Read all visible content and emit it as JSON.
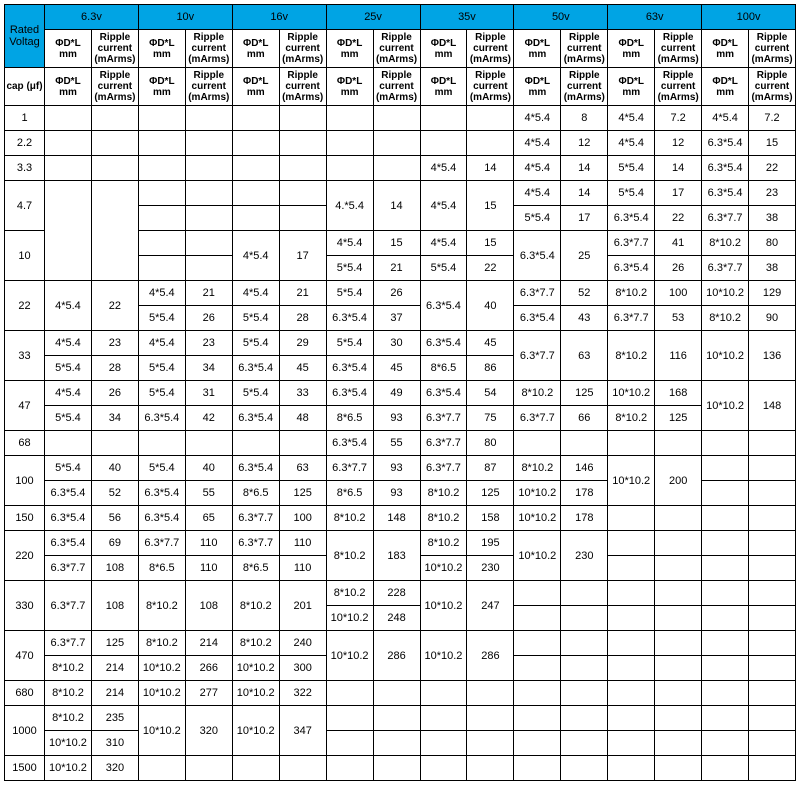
{
  "header": {
    "rated": "Rated Voltag",
    "volts": [
      "6.3v",
      "10v",
      "16v",
      "25v",
      "35v",
      "50v",
      "63v",
      "100v"
    ],
    "cap": "cap (μf)",
    "dl": "ΦD*L mm",
    "rc": "Ripple current (mArms)"
  },
  "caps": [
    "1",
    "2.2",
    "3.3",
    "4.7",
    "10",
    "22",
    "33",
    "47",
    "68",
    "100",
    "150",
    "220",
    "330",
    "470",
    "680",
    "1000",
    "1500"
  ],
  "colors": {
    "header_bg": "#00a4e4"
  },
  "data": {
    "1": {
      "50": [
        "4*5.4",
        "8"
      ],
      "63": [
        "4*5.4",
        "7.2"
      ],
      "100": [
        "4*5.4",
        "7.2"
      ]
    },
    "2.2": {
      "50": [
        "4*5.4",
        "12"
      ],
      "63": [
        "4*5.4",
        "12"
      ],
      "100": [
        "6.3*5.4",
        "15"
      ]
    },
    "3.3": {
      "35": [
        "4*5.4",
        "14"
      ],
      "50": [
        "4*5.4",
        "14"
      ],
      "63": [
        "5*5.4",
        "14"
      ],
      "100": [
        "6.3*5.4",
        "22"
      ]
    },
    "4.7": {
      "25": [
        "4.*5.4",
        "14"
      ],
      "35": [
        "4*5.4",
        "15"
      ],
      "50a": [
        "4*5.4",
        "14"
      ],
      "50b": [
        "5*5.4",
        "17"
      ],
      "63a": [
        "5*5.4",
        "17"
      ],
      "63b": [
        "6.3*5.4",
        "22"
      ],
      "100a": [
        "6.3*5.4",
        "23"
      ],
      "100b": [
        "6.3*7.7",
        "38"
      ]
    },
    "10": {
      "16": [
        "4*5.4",
        "17"
      ],
      "25a": [
        "4*5.4",
        "15"
      ],
      "25b": [
        "5*5.4",
        "21"
      ],
      "35a": [
        "4*5.4",
        "15"
      ],
      "35b": [
        "5*5.4",
        "22"
      ],
      "50": [
        "6.3*5.4",
        "25"
      ],
      "63a": [
        "6.3*7.7",
        "41"
      ],
      "63b": [
        "6.3*5.4",
        "26"
      ],
      "100a": [
        "8*10.2",
        "80"
      ],
      "100b": [
        "6.3*7.7",
        "38"
      ]
    },
    "22": {
      "6.3": [
        "4*5.4",
        "22"
      ],
      "10a": [
        "4*5.4",
        "21"
      ],
      "10b": [
        "5*5.4",
        "26"
      ],
      "16a": [
        "4*5.4",
        "21"
      ],
      "16b": [
        "5*5.4",
        "28"
      ],
      "25a": [
        "5*5.4",
        "26"
      ],
      "25b": [
        "6.3*5.4",
        "37"
      ],
      "35": [
        "6.3*5.4",
        "40"
      ],
      "50a": [
        "6.3*7.7",
        "52"
      ],
      "50b": [
        "6.3*5.4",
        "43"
      ],
      "63a": [
        "8*10.2",
        "100"
      ],
      "63b": [
        "6.3*7.7",
        "53"
      ],
      "100a": [
        "10*10.2",
        "129"
      ],
      "100b": [
        "8*10.2",
        "90"
      ]
    },
    "33": {
      "6.3a": [
        "4*5.4",
        "23"
      ],
      "6.3b": [
        "5*5.4",
        "28"
      ],
      "10a": [
        "4*5.4",
        "23"
      ],
      "10b": [
        "5*5.4",
        "34"
      ],
      "16a": [
        "5*5.4",
        "29"
      ],
      "16b": [
        "6.3*5.4",
        "45"
      ],
      "25a": [
        "5*5.4",
        "30"
      ],
      "25b": [
        "6.3*5.4",
        "45"
      ],
      "35a": [
        "6.3*5.4",
        "45"
      ],
      "35b": [
        "8*6.5",
        "86"
      ],
      "50": [
        "6.3*7.7",
        "63"
      ],
      "63": [
        "8*10.2",
        "116"
      ],
      "100": [
        "10*10.2",
        "136"
      ]
    },
    "47": {
      "6.3a": [
        "4*5.4",
        "26"
      ],
      "6.3b": [
        "5*5.4",
        "34"
      ],
      "10a": [
        "5*5.4",
        "31"
      ],
      "10b": [
        "6.3*5.4",
        "42"
      ],
      "16a": [
        "5*5.4",
        "33"
      ],
      "16b": [
        "6.3*5.4",
        "48"
      ],
      "25a": [
        "6.3*5.4",
        "49"
      ],
      "25b": [
        "8*6.5",
        "93"
      ],
      "35a": [
        "6.3*5.4",
        "54"
      ],
      "35b": [
        "6.3*7.7",
        "75"
      ],
      "50a": [
        "8*10.2",
        "125"
      ],
      "50b": [
        "6.3*7.7",
        "66"
      ],
      "63a": [
        "10*10.2",
        "168"
      ],
      "63b": [
        "8*10.2",
        "125"
      ],
      "100": [
        "10*10.2",
        "148"
      ]
    },
    "68": {
      "25": [
        "6.3*5.4",
        "55"
      ],
      "35": [
        "6.3*7.7",
        "80"
      ]
    },
    "100": {
      "6.3a": [
        "5*5.4",
        "40"
      ],
      "6.3b": [
        "6.3*5.4",
        "52"
      ],
      "10a": [
        "5*5.4",
        "40"
      ],
      "10b": [
        "6.3*5.4",
        "55"
      ],
      "16a": [
        "6.3*5.4",
        "63"
      ],
      "16b": [
        "8*6.5",
        "125"
      ],
      "25a": [
        "6.3*7.7",
        "93"
      ],
      "25b": [
        "8*6.5",
        "93"
      ],
      "35a": [
        "6.3*7.7",
        "87"
      ],
      "35b": [
        "8*10.2",
        "125"
      ],
      "50a": [
        "8*10.2",
        "146"
      ],
      "50b": [
        "10*10.2",
        "178"
      ],
      "63": [
        "10*10.2",
        "200"
      ]
    },
    "150": {
      "6.3": [
        "6.3*5.4",
        "56"
      ],
      "10": [
        "6.3*5.4",
        "65"
      ],
      "16": [
        "6.3*7.7",
        "100"
      ],
      "25": [
        "8*10.2",
        "148"
      ],
      "35": [
        "8*10.2",
        "158"
      ],
      "50": [
        "10*10.2",
        "178"
      ]
    },
    "220": {
      "6.3a": [
        "6.3*5.4",
        "69"
      ],
      "6.3b": [
        "6.3*7.7",
        "108"
      ],
      "10a": [
        "6.3*7.7",
        "110"
      ],
      "10b": [
        "8*6.5",
        "110"
      ],
      "16a": [
        "6.3*7.7",
        "110"
      ],
      "16b": [
        "8*6.5",
        "110"
      ],
      "25": [
        "8*10.2",
        "183"
      ],
      "35a": [
        "8*10.2",
        "195"
      ],
      "35b": [
        "10*10.2",
        "230"
      ],
      "50": [
        "10*10.2",
        "230"
      ]
    },
    "330": {
      "6.3": [
        "6.3*7.7",
        "108"
      ],
      "10": [
        "8*10.2",
        "108"
      ],
      "16": [
        "8*10.2",
        "201"
      ],
      "25a": [
        "8*10.2",
        "228"
      ],
      "25b": [
        "10*10.2",
        "248"
      ],
      "35": [
        "10*10.2",
        "247"
      ]
    },
    "470": {
      "6.3a": [
        "6.3*7.7",
        "125"
      ],
      "6.3b": [
        "8*10.2",
        "214"
      ],
      "10a": [
        "8*10.2",
        "214"
      ],
      "10b": [
        "10*10.2",
        "266"
      ],
      "16a": [
        "8*10.2",
        "240"
      ],
      "16b": [
        "10*10.2",
        "300"
      ],
      "25": [
        "10*10.2",
        "286"
      ],
      "35": [
        "10*10.2",
        "286"
      ]
    },
    "680": {
      "6.3": [
        "8*10.2",
        "214"
      ],
      "10": [
        "10*10.2",
        "277"
      ],
      "16": [
        "10*10.2",
        "322"
      ]
    },
    "1000": {
      "6.3a": [
        "8*10.2",
        "235"
      ],
      "6.3b": [
        "10*10.2",
        "310"
      ],
      "10": [
        "10*10.2",
        "320"
      ],
      "16": [
        "10*10.2",
        "347"
      ]
    },
    "1500": {
      "6.3": [
        "10*10.2",
        "320"
      ]
    }
  }
}
